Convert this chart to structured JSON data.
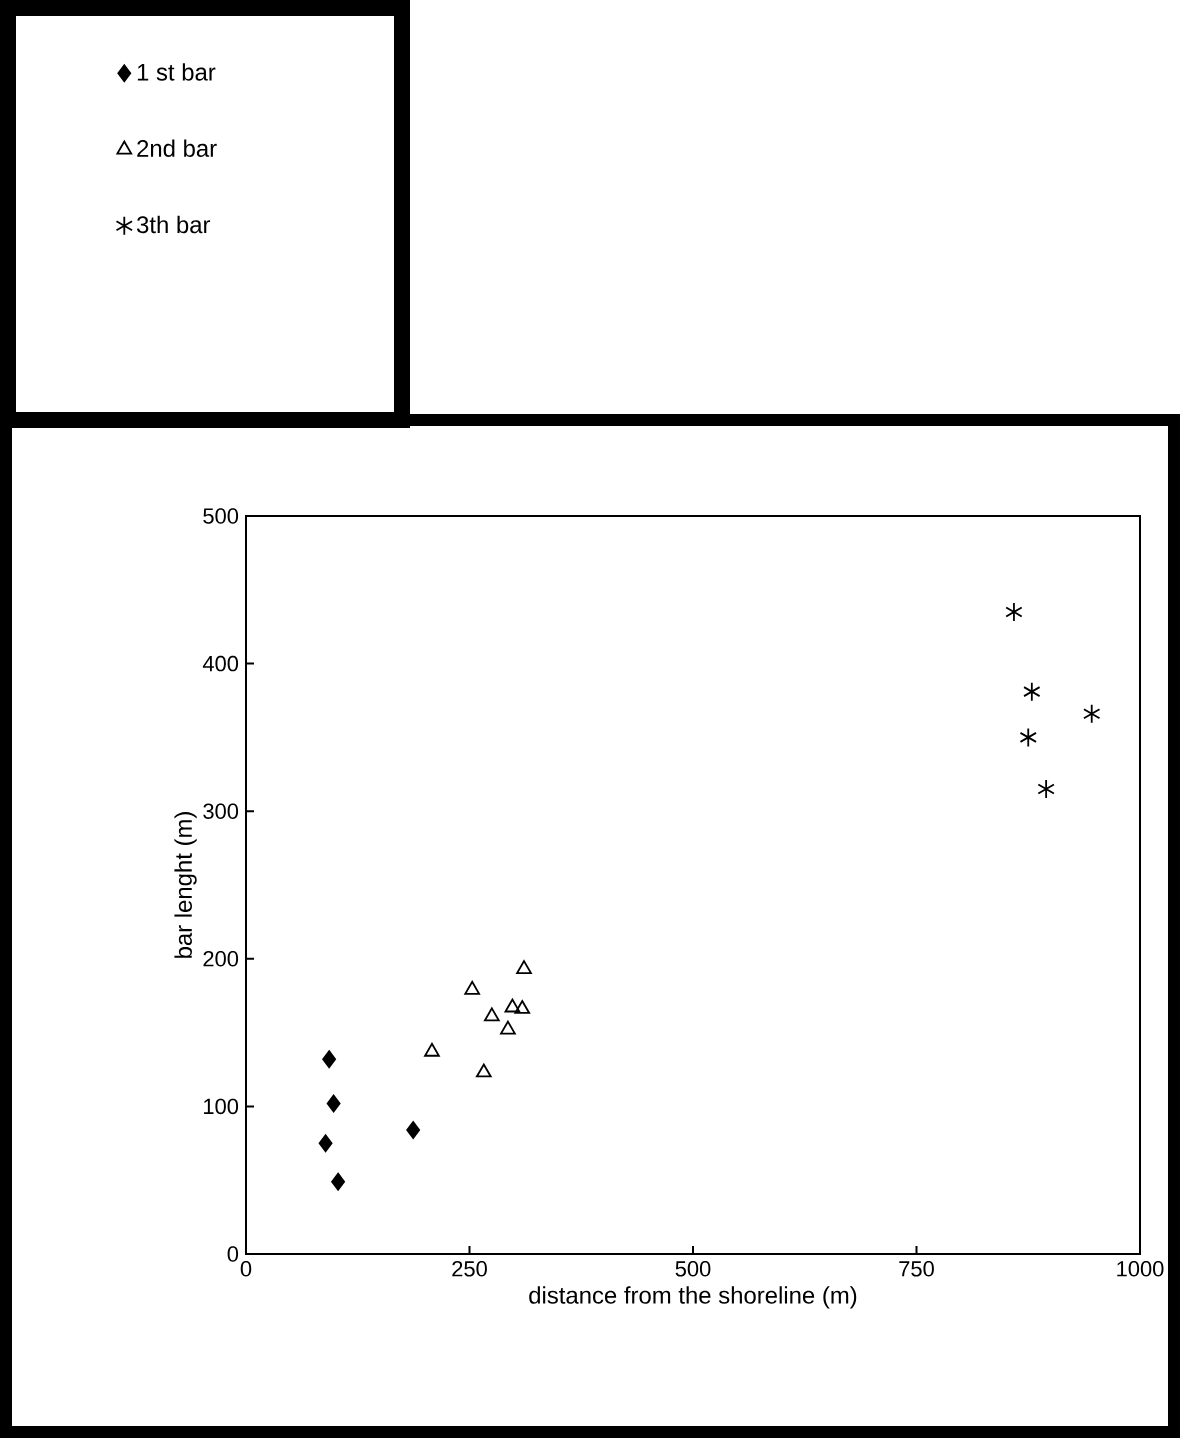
{
  "chart_data": {
    "type": "scatter",
    "xlabel": "distance from the shoreline (m)",
    "ylabel": "bar lenght (m)",
    "xlim": [
      0,
      1000
    ],
    "ylim": [
      0,
      500
    ],
    "xticks": [
      0,
      250,
      500,
      750,
      1000
    ],
    "yticks": [
      0,
      100,
      200,
      300,
      400,
      500
    ],
    "grid": false,
    "legend": "top left",
    "series": [
      {
        "name": "1 st bar",
        "color": "#000000",
        "marker": "diamond",
        "x": [
          93,
          98,
          89,
          103,
          187
        ],
        "values": [
          132,
          102,
          75,
          49,
          84
        ]
      },
      {
        "name": "2nd bar",
        "color": "#000000",
        "marker": "triangle",
        "x": [
          208,
          253,
          266,
          275,
          293,
          298,
          309,
          311
        ],
        "values": [
          137,
          179,
          123,
          161,
          152,
          167,
          166,
          193
        ]
      },
      {
        "name": "3th bar",
        "color": "#000000",
        "marker": "cross",
        "x": [
          859,
          879,
          875,
          895,
          946
        ],
        "values": [
          435,
          381,
          350,
          315,
          366
        ]
      }
    ]
  }
}
